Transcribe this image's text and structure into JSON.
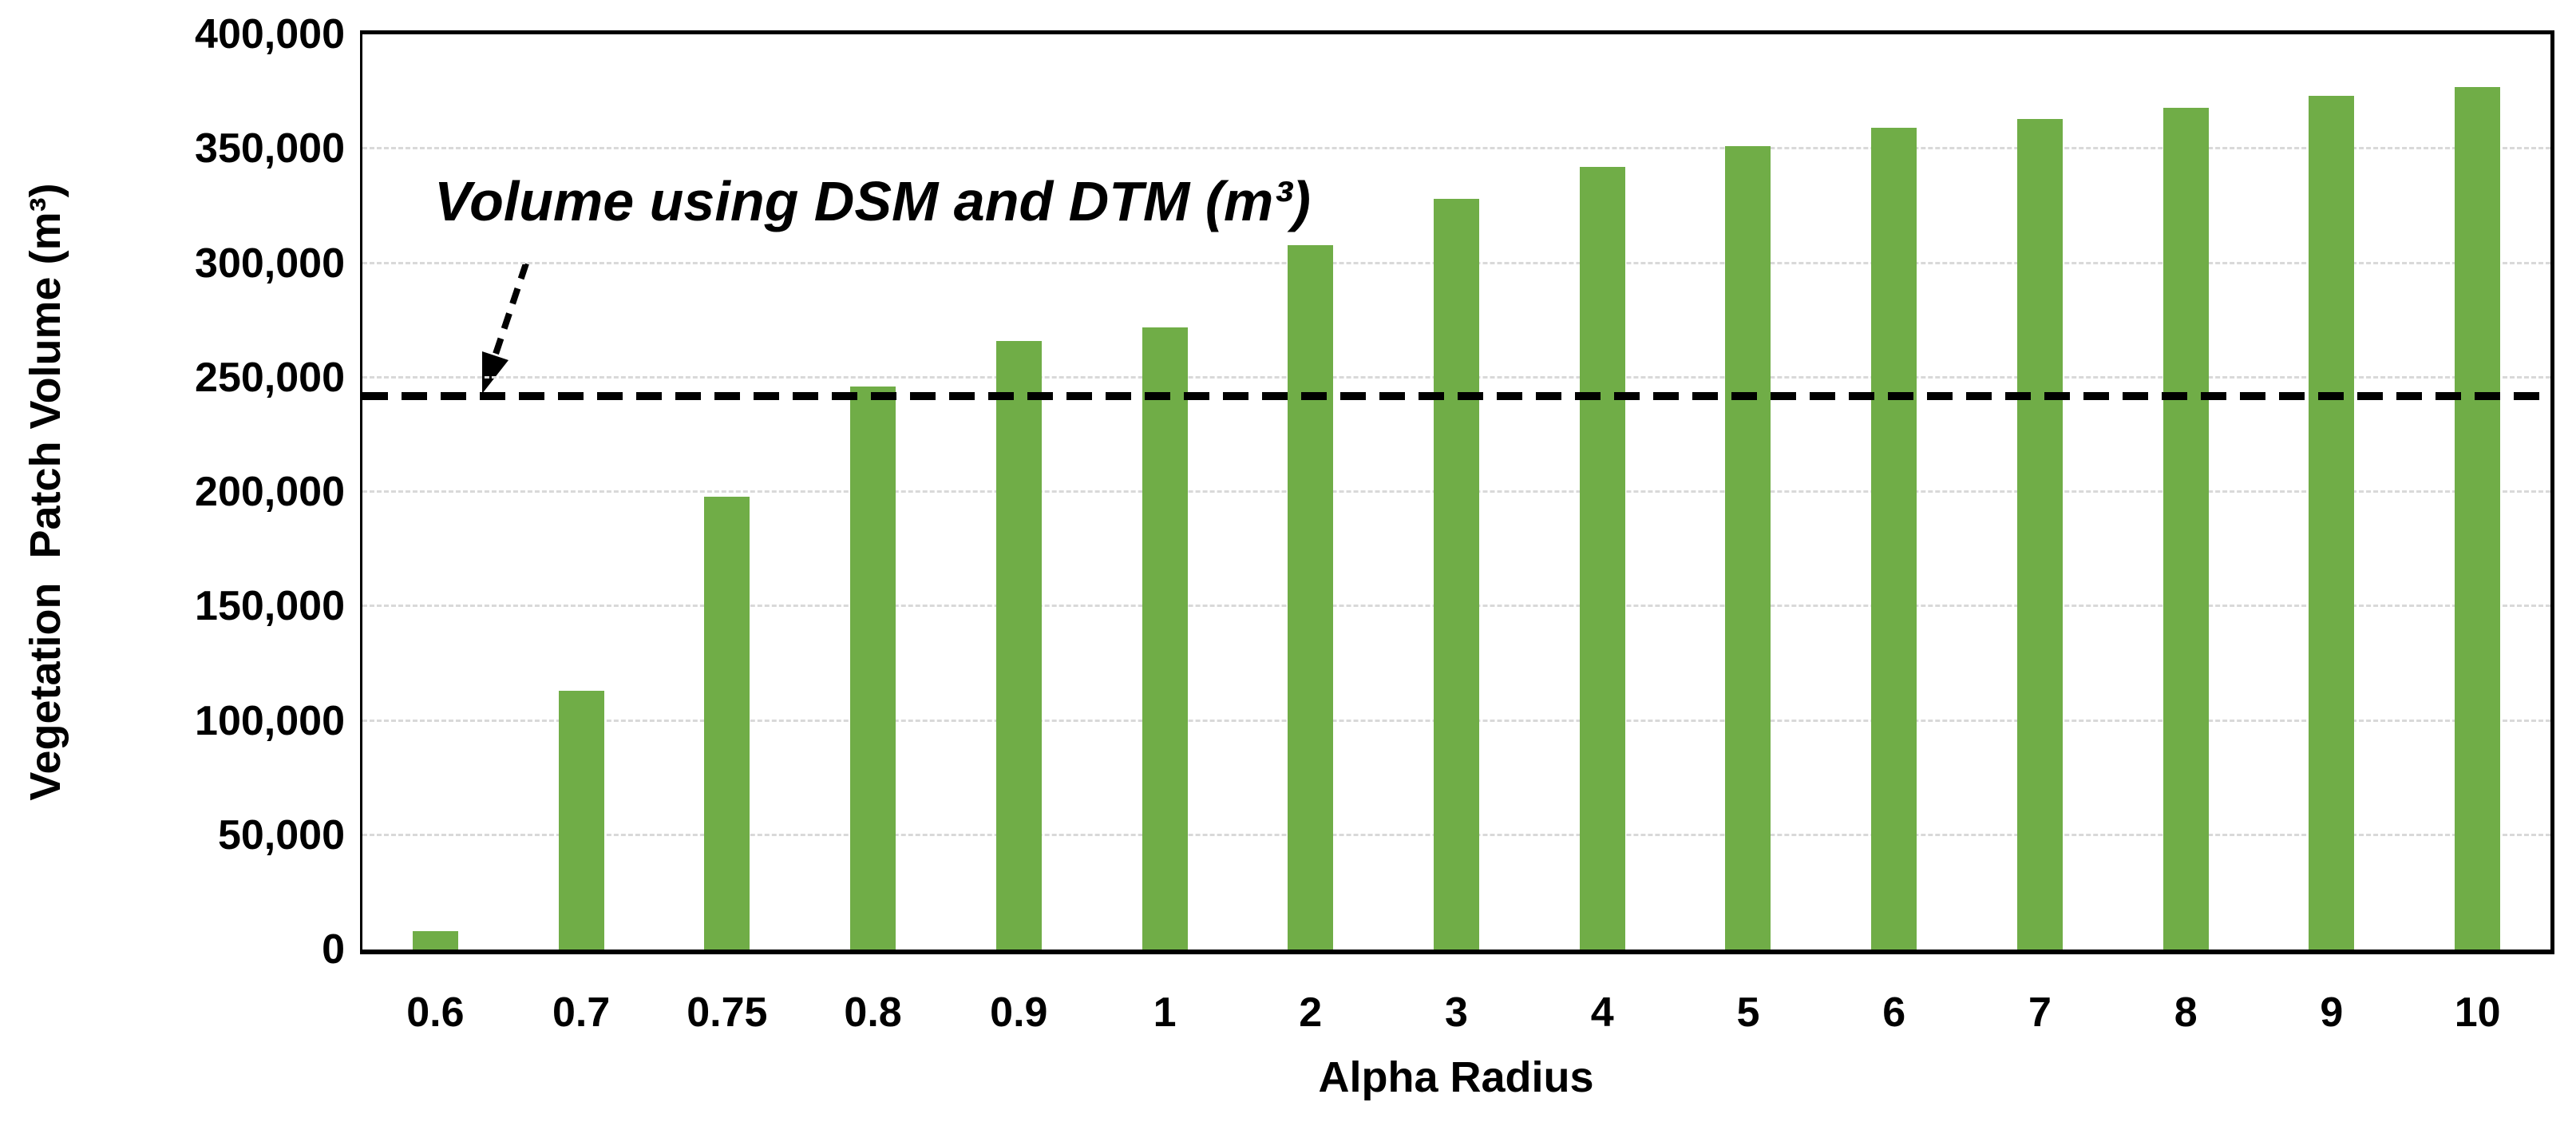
{
  "chart_data": {
    "type": "bar",
    "title": "",
    "xlabel": "Alpha Radius",
    "ylabel": "Vegetation  Patch Volume (m³)",
    "categories": [
      "0.6",
      "0.7",
      "0.75",
      "0.8",
      "0.9",
      "1",
      "2",
      "3",
      "4",
      "5",
      "6",
      "7",
      "8",
      "9",
      "10"
    ],
    "values": [
      8000,
      113000,
      198000,
      246000,
      266000,
      272000,
      308000,
      328000,
      342000,
      351000,
      359000,
      363000,
      368000,
      373000,
      377000
    ],
    "ylim": [
      0,
      400000
    ],
    "ytick_step": 50000,
    "ytick_labels": [
      "0",
      "50,000",
      "100,000",
      "150,000",
      "200,000",
      "250,000",
      "300,000",
      "350,000",
      "400,000"
    ],
    "grid": "horizontal-dashed",
    "legend": "none",
    "reference_line": {
      "value": 242000,
      "label": "Volume using DSM and DTM (m³)",
      "style": "dashed"
    },
    "colors": {
      "bar": "#70AD47",
      "gridline": "#D9D9D9",
      "axis": "#000000",
      "reference_line": "#000000",
      "background": "#FFFFFF"
    }
  }
}
